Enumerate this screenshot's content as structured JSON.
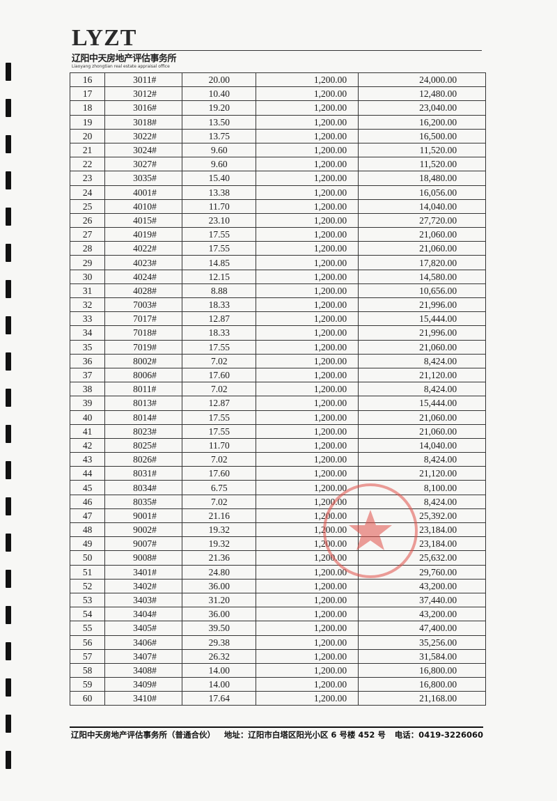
{
  "header": {
    "logo": "LYZT",
    "company_cn": "辽阳中天房地产评估事务所",
    "company_en": "Liaoyang zhongtian real estate appraisal office"
  },
  "table": {
    "rows": [
      [
        "16",
        "3011#",
        "20.00",
        "1,200.00",
        "24,000.00"
      ],
      [
        "17",
        "3012#",
        "10.40",
        "1,200.00",
        "12,480.00"
      ],
      [
        "18",
        "3016#",
        "19.20",
        "1,200.00",
        "23,040.00"
      ],
      [
        "19",
        "3018#",
        "13.50",
        "1,200.00",
        "16,200.00"
      ],
      [
        "20",
        "3022#",
        "13.75",
        "1,200.00",
        "16,500.00"
      ],
      [
        "21",
        "3024#",
        "9.60",
        "1,200.00",
        "11,520.00"
      ],
      [
        "22",
        "3027#",
        "9.60",
        "1,200.00",
        "11,520.00"
      ],
      [
        "23",
        "3035#",
        "15.40",
        "1,200.00",
        "18,480.00"
      ],
      [
        "24",
        "4001#",
        "13.38",
        "1,200.00",
        "16,056.00"
      ],
      [
        "25",
        "4010#",
        "11.70",
        "1,200.00",
        "14,040.00"
      ],
      [
        "26",
        "4015#",
        "23.10",
        "1,200.00",
        "27,720.00"
      ],
      [
        "27",
        "4019#",
        "17.55",
        "1,200.00",
        "21,060.00"
      ],
      [
        "28",
        "4022#",
        "17.55",
        "1,200.00",
        "21,060.00"
      ],
      [
        "29",
        "4023#",
        "14.85",
        "1,200.00",
        "17,820.00"
      ],
      [
        "30",
        "4024#",
        "12.15",
        "1,200.00",
        "14,580.00"
      ],
      [
        "31",
        "4028#",
        "8.88",
        "1,200.00",
        "10,656.00"
      ],
      [
        "32",
        "7003#",
        "18.33",
        "1,200.00",
        "21,996.00"
      ],
      [
        "33",
        "7017#",
        "12.87",
        "1,200.00",
        "15,444.00"
      ],
      [
        "34",
        "7018#",
        "18.33",
        "1,200.00",
        "21,996.00"
      ],
      [
        "35",
        "7019#",
        "17.55",
        "1,200.00",
        "21,060.00"
      ],
      [
        "36",
        "8002#",
        "7.02",
        "1,200.00",
        "8,424.00"
      ],
      [
        "37",
        "8006#",
        "17.60",
        "1,200.00",
        "21,120.00"
      ],
      [
        "38",
        "8011#",
        "7.02",
        "1,200.00",
        "8,424.00"
      ],
      [
        "39",
        "8013#",
        "12.87",
        "1,200.00",
        "15,444.00"
      ],
      [
        "40",
        "8014#",
        "17.55",
        "1,200.00",
        "21,060.00"
      ],
      [
        "41",
        "8023#",
        "17.55",
        "1,200.00",
        "21,060.00"
      ],
      [
        "42",
        "8025#",
        "11.70",
        "1,200.00",
        "14,040.00"
      ],
      [
        "43",
        "8026#",
        "7.02",
        "1,200.00",
        "8,424.00"
      ],
      [
        "44",
        "8031#",
        "17.60",
        "1,200.00",
        "21,120.00"
      ],
      [
        "45",
        "8034#",
        "6.75",
        "1,200.00",
        "8,100.00"
      ],
      [
        "46",
        "8035#",
        "7.02",
        "1,200.00",
        "8,424.00"
      ],
      [
        "47",
        "9001#",
        "21.16",
        "1,200.00",
        "25,392.00"
      ],
      [
        "48",
        "9002#",
        "19.32",
        "1,200.00",
        "23,184.00"
      ],
      [
        "49",
        "9007#",
        "19.32",
        "1,200.00",
        "23,184.00"
      ],
      [
        "50",
        "9008#",
        "21.36",
        "1,200.00",
        "25,632.00"
      ],
      [
        "51",
        "3401#",
        "24.80",
        "1,200.00",
        "29,760.00"
      ],
      [
        "52",
        "3402#",
        "36.00",
        "1,200.00",
        "43,200.00"
      ],
      [
        "53",
        "3403#",
        "31.20",
        "1,200.00",
        "37,440.00"
      ],
      [
        "54",
        "3404#",
        "36.00",
        "1,200.00",
        "43,200.00"
      ],
      [
        "55",
        "3405#",
        "39.50",
        "1,200.00",
        "47,400.00"
      ],
      [
        "56",
        "3406#",
        "29.38",
        "1,200.00",
        "35,256.00"
      ],
      [
        "57",
        "3407#",
        "26.32",
        "1,200.00",
        "31,584.00"
      ],
      [
        "58",
        "3408#",
        "14.00",
        "1,200.00",
        "16,800.00"
      ],
      [
        "59",
        "3409#",
        "14.00",
        "1,200.00",
        "16,800.00"
      ],
      [
        "60",
        "3410#",
        "17.64",
        "1,200.00",
        "21,168.00"
      ]
    ]
  },
  "footer": {
    "company": "辽阳中天房地产评估事务所（普通合伙）",
    "address": "地址：辽阳市白塔区阳光小区 6 号楼 452 号",
    "phone": "电话：0419-3226060"
  },
  "stamp": {
    "text": "辽阳中天房地产评估事务所",
    "color": "#e0504a"
  }
}
